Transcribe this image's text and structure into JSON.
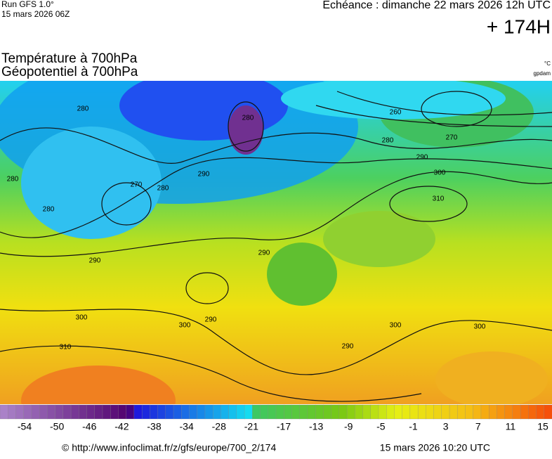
{
  "header": {
    "run": "Run GFS 1.0°",
    "run_date": "15 mars 2026 06Z",
    "valid": "Echéance : dimanche 22 mars 2026 12h UTC",
    "lead": "+ 174H",
    "title_line1": "Température à 700hPa",
    "title_line2": "Géopotentiel à 700hPa",
    "unit_temp": "°C",
    "unit_geo": "gpdam"
  },
  "contour_labels": [
    280,
    280,
    260,
    270,
    280,
    290,
    300,
    310,
    290,
    270,
    280,
    280,
    290,
    290,
    300,
    300,
    290,
    310,
    290,
    300,
    300,
    280
  ],
  "colorbar_labels": [
    -54,
    -50,
    -46,
    -42,
    -38,
    -34,
    -28,
    -21,
    -17,
    -13,
    -9,
    -5,
    -1,
    3,
    7,
    11,
    15
  ],
  "footer": {
    "url": "© http://www.infoclimat.fr/z/gfs/europe/700_2/174",
    "generated": "15 mars 2026 10:20 UTC"
  }
}
